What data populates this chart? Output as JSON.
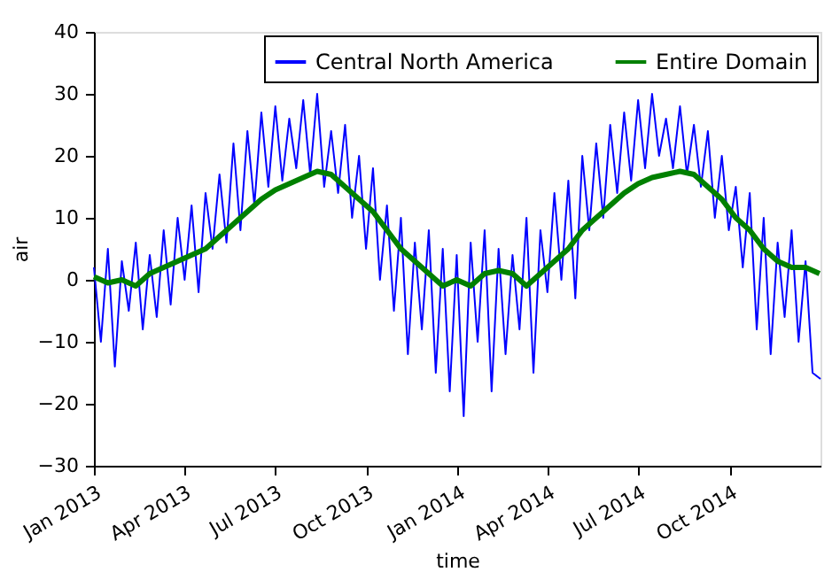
{
  "chart_data": {
    "type": "line",
    "xlabel": "time",
    "ylabel": "air",
    "xlim": [
      "2013-01-01",
      "2014-12-31"
    ],
    "ylim": [
      -30,
      40
    ],
    "yticks": [
      -30,
      -20,
      -10,
      0,
      10,
      20,
      30,
      40
    ],
    "xticks": [
      {
        "value": "2013-01-01",
        "label": "Jan 2013"
      },
      {
        "value": "2013-04-01",
        "label": "Apr 2013"
      },
      {
        "value": "2013-07-01",
        "label": "Jul 2013"
      },
      {
        "value": "2013-10-01",
        "label": "Oct 2013"
      },
      {
        "value": "2014-01-01",
        "label": "Jan 2014"
      },
      {
        "value": "2014-04-01",
        "label": "Apr 2014"
      },
      {
        "value": "2014-07-01",
        "label": "Jul 2014"
      },
      {
        "value": "2014-10-01",
        "label": "Oct 2014"
      }
    ],
    "grid": false,
    "legend": "top right",
    "series": [
      {
        "name": "Central North America",
        "color": "#0000ff",
        "x": [
          "2013-01-01",
          "2013-01-08",
          "2013-01-15",
          "2013-01-22",
          "2013-01-29",
          "2013-02-05",
          "2013-02-12",
          "2013-02-19",
          "2013-02-26",
          "2013-03-05",
          "2013-03-12",
          "2013-03-19",
          "2013-03-26",
          "2013-04-02",
          "2013-04-09",
          "2013-04-16",
          "2013-04-23",
          "2013-04-30",
          "2013-05-07",
          "2013-05-14",
          "2013-05-21",
          "2013-05-28",
          "2013-06-04",
          "2013-06-11",
          "2013-06-18",
          "2013-06-25",
          "2013-07-02",
          "2013-07-09",
          "2013-07-16",
          "2013-07-23",
          "2013-07-30",
          "2013-08-06",
          "2013-08-13",
          "2013-08-20",
          "2013-08-27",
          "2013-09-03",
          "2013-09-10",
          "2013-09-17",
          "2013-09-24",
          "2013-10-01",
          "2013-10-08",
          "2013-10-15",
          "2013-10-22",
          "2013-10-29",
          "2013-11-05",
          "2013-11-12",
          "2013-11-19",
          "2013-11-26",
          "2013-12-03",
          "2013-12-10",
          "2013-12-17",
          "2013-12-24",
          "2013-12-31",
          "2014-01-07",
          "2014-01-14",
          "2014-01-21",
          "2014-01-28",
          "2014-02-04",
          "2014-02-11",
          "2014-02-18",
          "2014-02-25",
          "2014-03-04",
          "2014-03-11",
          "2014-03-18",
          "2014-03-25",
          "2014-04-01",
          "2014-04-08",
          "2014-04-15",
          "2014-04-22",
          "2014-04-29",
          "2014-05-06",
          "2014-05-13",
          "2014-05-20",
          "2014-05-27",
          "2014-06-03",
          "2014-06-10",
          "2014-06-17",
          "2014-06-24",
          "2014-07-01",
          "2014-07-08",
          "2014-07-15",
          "2014-07-22",
          "2014-07-29",
          "2014-08-05",
          "2014-08-12",
          "2014-08-19",
          "2014-08-26",
          "2014-09-02",
          "2014-09-09",
          "2014-09-16",
          "2014-09-23",
          "2014-09-30",
          "2014-10-07",
          "2014-10-14",
          "2014-10-21",
          "2014-10-28",
          "2014-11-04",
          "2014-11-11",
          "2014-11-18",
          "2014-11-25",
          "2014-12-02",
          "2014-12-09",
          "2014-12-16",
          "2014-12-23",
          "2014-12-31"
        ],
        "values": [
          2,
          -10,
          5,
          -14,
          3,
          -5,
          6,
          -8,
          4,
          -6,
          8,
          -4,
          10,
          0,
          12,
          -2,
          14,
          5,
          17,
          6,
          22,
          8,
          24,
          12,
          27,
          15,
          28,
          16,
          26,
          18,
          29,
          17,
          30,
          15,
          24,
          14,
          25,
          10,
          20,
          5,
          18,
          0,
          12,
          -5,
          10,
          -12,
          6,
          -8,
          8,
          -15,
          5,
          -18,
          4,
          -22,
          6,
          -10,
          8,
          -18,
          5,
          -12,
          4,
          -8,
          10,
          -15,
          8,
          -2,
          14,
          0,
          16,
          -3,
          20,
          8,
          22,
          10,
          25,
          14,
          27,
          16,
          29,
          18,
          30,
          20,
          26,
          18,
          28,
          17,
          25,
          15,
          24,
          10,
          20,
          8,
          15,
          2,
          14,
          -8,
          10,
          -12,
          6,
          -6,
          8,
          -10,
          3,
          -15,
          -16
        ]
      },
      {
        "name": "Entire Domain",
        "color": "#008000",
        "x": [
          "2013-01-01",
          "2013-01-15",
          "2013-01-29",
          "2013-02-12",
          "2013-02-26",
          "2013-03-12",
          "2013-03-26",
          "2013-04-09",
          "2013-04-23",
          "2013-05-07",
          "2013-05-21",
          "2013-06-04",
          "2013-06-18",
          "2013-07-02",
          "2013-07-16",
          "2013-07-30",
          "2013-08-13",
          "2013-08-27",
          "2013-09-10",
          "2013-09-24",
          "2013-10-08",
          "2013-10-22",
          "2013-11-05",
          "2013-11-19",
          "2013-12-03",
          "2013-12-17",
          "2013-12-31",
          "2014-01-14",
          "2014-01-28",
          "2014-02-11",
          "2014-02-25",
          "2014-03-11",
          "2014-03-25",
          "2014-04-08",
          "2014-04-22",
          "2014-05-06",
          "2014-05-20",
          "2014-06-03",
          "2014-06-17",
          "2014-07-01",
          "2014-07-15",
          "2014-07-29",
          "2014-08-12",
          "2014-08-26",
          "2014-09-09",
          "2014-09-23",
          "2014-10-07",
          "2014-10-21",
          "2014-11-04",
          "2014-11-18",
          "2014-12-02",
          "2014-12-16",
          "2014-12-30"
        ],
        "values": [
          0.5,
          -0.5,
          0,
          -1,
          1,
          2,
          3,
          4,
          5,
          7,
          9,
          11,
          13,
          14.5,
          15.5,
          16.5,
          17.5,
          17,
          15,
          13,
          11,
          8,
          5,
          3,
          1,
          -1,
          0,
          -1,
          1,
          1.5,
          1,
          -1,
          1,
          3,
          5,
          8,
          10,
          12,
          14,
          15.5,
          16.5,
          17,
          17.5,
          17,
          15,
          13,
          10,
          8,
          5,
          3,
          2,
          2,
          1
        ]
      }
    ]
  }
}
